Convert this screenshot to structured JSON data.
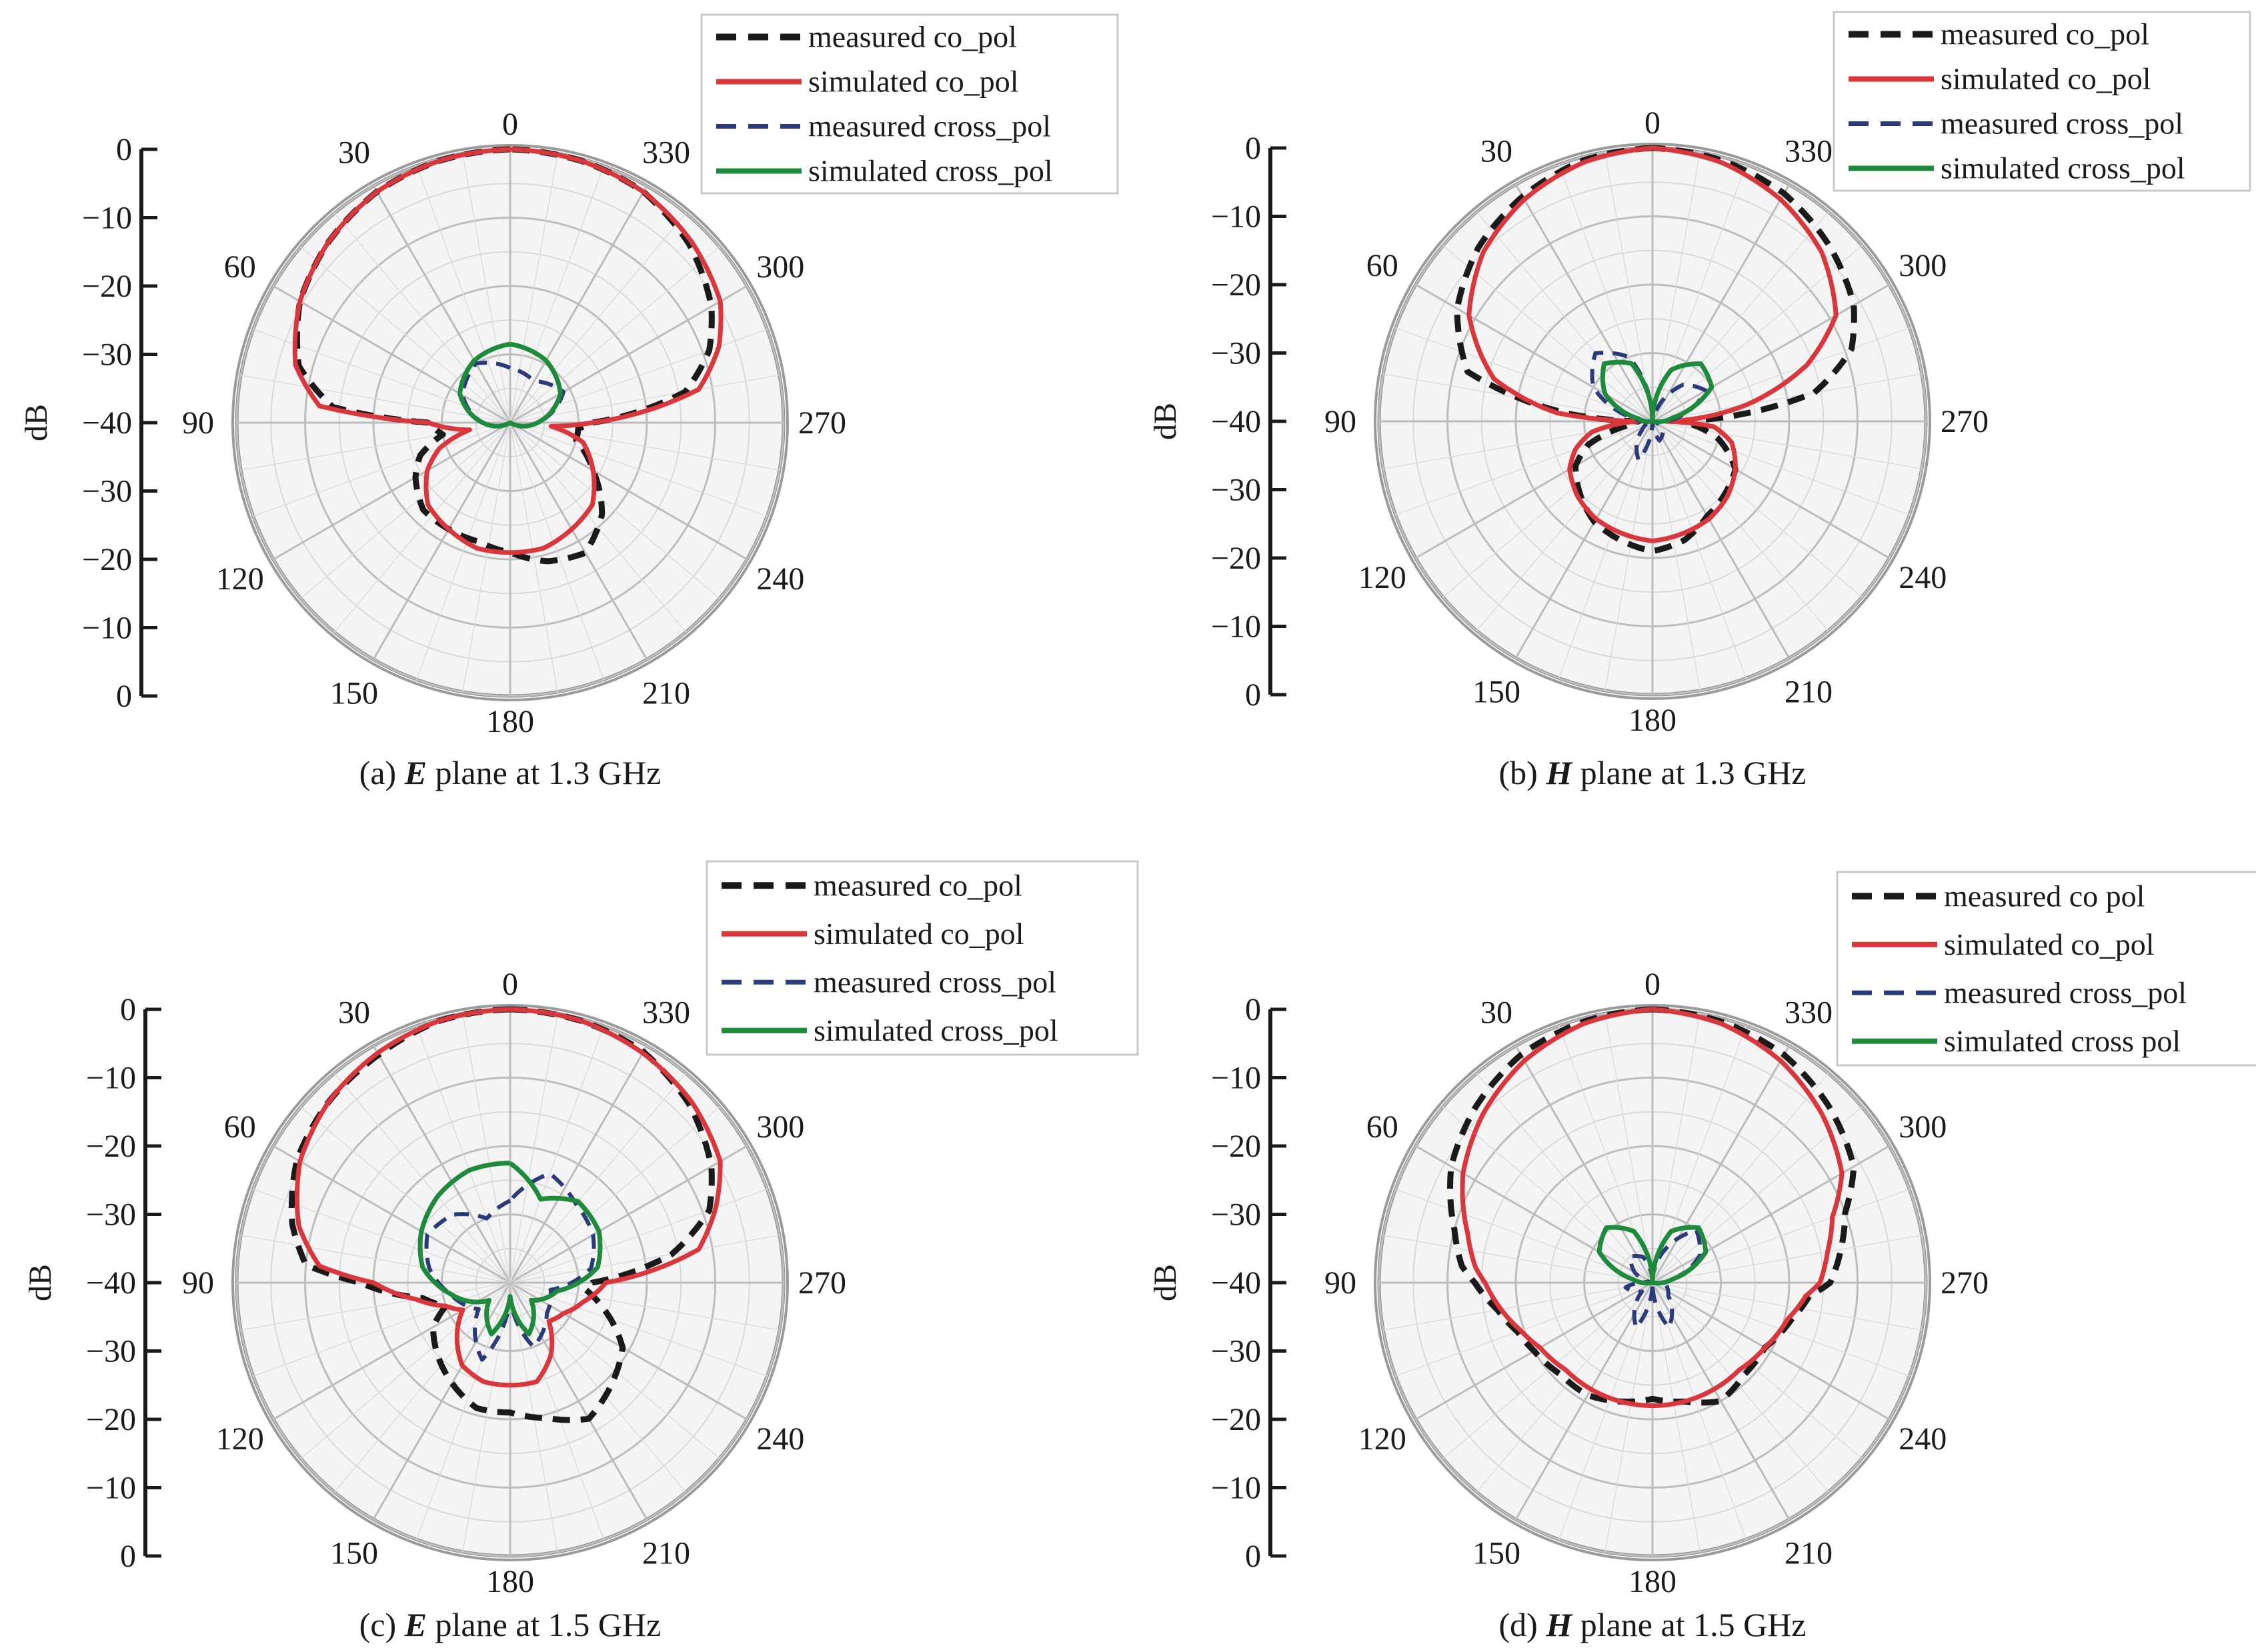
{
  "colors": {
    "measured_co": "#1a1a1a",
    "simulated_co": "#d9373b",
    "measured_cross": "#2b3a78",
    "simulated_cross": "#1e8a3c"
  },
  "chart_data": [
    {
      "type": "polar",
      "caption": {
        "prefix": "(a) ",
        "emph": "E",
        "suffix": " plane at 1.3 GHz"
      },
      "ylabel": "dB",
      "radial_ticks_upper": [
        "0",
        "−10",
        "−20",
        "−30",
        "−40"
      ],
      "radial_ticks_lower": [
        "−30",
        "−20",
        "−10",
        "0"
      ],
      "radial_range_db": [
        -40,
        0
      ],
      "angle_labels": [
        "0",
        "30",
        "60",
        "90",
        "120",
        "150",
        "180",
        "210",
        "240",
        "270",
        "300",
        "330"
      ],
      "angle_direction": "counterclockwise",
      "legend": [
        "measured co_pol",
        "simulated co_pol",
        "measured cross_pol",
        "simulated cross_pol"
      ],
      "legend_position": "top-right",
      "grid": true,
      "series": [
        {
          "name": "measured co_pol",
          "style": "dashed",
          "theta": [
            0,
            15,
            30,
            45,
            60,
            75,
            85,
            90,
            100,
            110,
            120,
            135,
            150,
            165,
            180,
            195,
            210,
            225,
            240,
            255,
            265,
            270,
            280,
            290,
            300,
            315,
            330,
            345,
            360
          ],
          "r": [
            0,
            -0.3,
            -1,
            -2.5,
            -4.5,
            -8,
            -14,
            -28,
            -30,
            -26,
            -24,
            -22,
            -22,
            -22,
            -21,
            -19,
            -18,
            -21,
            -26,
            -30,
            -30,
            -28,
            -14,
            -9,
            -6,
            -3,
            -1,
            -0.3,
            0
          ]
        },
        {
          "name": "simulated co_pol",
          "style": "solid",
          "theta": [
            0,
            15,
            30,
            45,
            60,
            75,
            85,
            90,
            100,
            110,
            120,
            135,
            150,
            165,
            180,
            195,
            210,
            225,
            240,
            255,
            265,
            270,
            280,
            290,
            300,
            315,
            330,
            345,
            360
          ],
          "r": [
            0,
            -0.3,
            -1,
            -2.5,
            -4.5,
            -7.5,
            -12,
            -28,
            -34,
            -29,
            -26,
            -23,
            -22,
            -21,
            -21,
            -21,
            -22,
            -23,
            -26,
            -29,
            -34,
            -28,
            -12,
            -7.5,
            -4.5,
            -2.5,
            -1,
            -0.3,
            0
          ]
        },
        {
          "name": "measured cross_pol",
          "style": "dashed",
          "theta": [
            0,
            30,
            60,
            90,
            120,
            150,
            180,
            210,
            240,
            270,
            300,
            330,
            360
          ],
          "r": [
            -32,
            -30,
            -32,
            -36,
            -40,
            -40,
            -40,
            -40,
            -40,
            -36,
            -31,
            -33,
            -32
          ]
        },
        {
          "name": "simulated cross_pol",
          "style": "solid",
          "theta": [
            0,
            30,
            60,
            90,
            120,
            150,
            180,
            210,
            240,
            270,
            300,
            330,
            360
          ],
          "r": [
            -28.5,
            -29.5,
            -31.5,
            -36,
            -40,
            -40,
            -40,
            -40,
            -40,
            -36,
            -31.5,
            -29.5,
            -28.5
          ]
        }
      ]
    },
    {
      "type": "polar",
      "caption": {
        "prefix": "(b) ",
        "emph": "H",
        "suffix": " plane at 1.3 GHz"
      },
      "ylabel": "dB",
      "radial_ticks_upper": [
        "0",
        "−10",
        "−20",
        "−30",
        "−40"
      ],
      "radial_ticks_lower": [
        "−30",
        "−20",
        "−10",
        "0"
      ],
      "radial_range_db": [
        -40,
        0
      ],
      "angle_labels": [
        "0",
        "30",
        "60",
        "90",
        "120",
        "150",
        "180",
        "210",
        "240",
        "270",
        "300",
        "330"
      ],
      "angle_direction": "counterclockwise",
      "legend": [
        "measured co_pol",
        "simulated co_pol",
        "measured cross_pol",
        "simulated cross_pol"
      ],
      "legend_position": "top-right",
      "grid": true,
      "series": [
        {
          "name": "measured co_pol",
          "style": "dashed",
          "theta": [
            0,
            15,
            30,
            45,
            60,
            75,
            85,
            90,
            100,
            110,
            120,
            135,
            150,
            165,
            180,
            195,
            210,
            225,
            240,
            255,
            265,
            270,
            280,
            290,
            300,
            315,
            330,
            345,
            360
          ],
          "r": [
            0,
            -0.5,
            -2,
            -4,
            -7,
            -12,
            -28,
            -38,
            -36,
            -30,
            -27,
            -25,
            -23,
            -22,
            -21,
            -22,
            -24,
            -25,
            -26,
            -30,
            -34,
            -36,
            -16,
            -9,
            -6,
            -3.5,
            -1.5,
            -0.5,
            0
          ]
        },
        {
          "name": "simulated co_pol",
          "style": "solid",
          "theta": [
            0,
            15,
            30,
            45,
            60,
            75,
            85,
            90,
            100,
            110,
            120,
            135,
            150,
            165,
            180,
            195,
            210,
            225,
            240,
            255,
            265,
            270,
            280,
            290,
            300,
            315,
            330,
            345,
            360
          ],
          "r": [
            0,
            -0.8,
            -2.5,
            -5,
            -9,
            -16,
            -26,
            -38,
            -31,
            -28,
            -26,
            -24.5,
            -23.5,
            -23,
            -22.5,
            -23,
            -23.5,
            -24.5,
            -26,
            -28,
            -31,
            -38,
            -26,
            -16,
            -9,
            -5,
            -2.5,
            -0.8,
            0
          ]
        },
        {
          "name": "measured cross_pol",
          "style": "dashed",
          "theta": [
            0,
            20,
            40,
            60,
            80,
            100,
            130,
            160,
            180,
            200,
            230,
            260,
            280,
            300,
            320,
            340,
            360
          ],
          "r": [
            -40,
            -30,
            -27,
            -30,
            -37,
            -40,
            -38,
            -34,
            -40,
            -37,
            -38,
            -40,
            -36,
            -31,
            -33,
            -38,
            -40
          ]
        },
        {
          "name": "simulated cross_pol",
          "style": "solid",
          "theta": [
            0,
            20,
            40,
            60,
            80,
            100,
            140,
            180,
            220,
            260,
            280,
            300,
            320,
            340,
            360
          ],
          "r": [
            -40,
            -31,
            -29,
            -32,
            -38,
            -40,
            -40,
            -40,
            -40,
            -40,
            -37,
            -30,
            -29,
            -32,
            -40
          ]
        }
      ]
    },
    {
      "type": "polar",
      "caption": {
        "prefix": "(c) ",
        "emph": "E",
        "suffix": " plane at 1.5 GHz"
      },
      "ylabel": "dB",
      "radial_ticks_upper": [
        "0",
        "−10",
        "−20",
        "−30",
        "−40"
      ],
      "radial_ticks_lower": [
        "−30",
        "−20",
        "−10",
        "0"
      ],
      "radial_range_db": [
        -40,
        0
      ],
      "angle_labels": [
        "0",
        "30",
        "60",
        "90",
        "120",
        "150",
        "180",
        "210",
        "240",
        "270",
        "300",
        "330"
      ],
      "angle_direction": "counterclockwise",
      "legend": [
        "measured co_pol",
        "simulated co_pol",
        "measured cross_pol",
        "simulated cross_pol"
      ],
      "legend_position": "top-right",
      "grid": true,
      "series": [
        {
          "name": "measured co_pol",
          "style": "dashed",
          "theta": [
            0,
            15,
            30,
            45,
            60,
            75,
            85,
            90,
            100,
            110,
            120,
            135,
            150,
            165,
            180,
            195,
            210,
            225,
            240,
            255,
            265,
            270,
            280,
            290,
            300,
            315,
            330,
            345,
            360
          ],
          "r": [
            0,
            -0.3,
            -1.5,
            -2.5,
            -4,
            -7,
            -10,
            -18,
            -27,
            -30,
            -27,
            -25,
            -23,
            -21,
            -21,
            -19.5,
            -17,
            -19,
            -21,
            -26,
            -29,
            -28,
            -16,
            -9,
            -6,
            -3,
            -1,
            -0.3,
            0
          ]
        },
        {
          "name": "simulated co_pol",
          "style": "solid",
          "theta": [
            0,
            15,
            30,
            45,
            60,
            75,
            85,
            90,
            100,
            110,
            120,
            135,
            150,
            165,
            180,
            195,
            210,
            225,
            240,
            255,
            265,
            270,
            280,
            290,
            300,
            315,
            330,
            345,
            360
          ],
          "r": [
            0,
            -0.3,
            -1.2,
            -2.5,
            -4.5,
            -8,
            -12,
            -20,
            -26,
            -30,
            -32,
            -29,
            -26,
            -25,
            -25,
            -25,
            -28,
            -32,
            -31,
            -29,
            -27,
            -26,
            -12,
            -8,
            -4.5,
            -2.5,
            -1.2,
            -0.3,
            0
          ]
        },
        {
          "name": "measured cross_pol",
          "style": "dashed",
          "theta": [
            0,
            20,
            40,
            60,
            80,
            100,
            130,
            160,
            180,
            200,
            230,
            260,
            280,
            300,
            320,
            340,
            360
          ],
          "r": [
            -28,
            -30,
            -27,
            -26,
            -28,
            -31,
            -34,
            -28,
            -38,
            -30,
            -33,
            -34,
            -28,
            -26,
            -25,
            -23,
            -28
          ]
        },
        {
          "name": "simulated cross_pol",
          "style": "solid",
          "theta": [
            0,
            20,
            40,
            60,
            80,
            100,
            130,
            160,
            180,
            200,
            230,
            260,
            280,
            300,
            320,
            340,
            360
          ],
          "r": [
            -22.5,
            -22.5,
            -23.5,
            -25,
            -27,
            -31,
            -36,
            -32,
            -38,
            -32,
            -36,
            -33,
            -27,
            -25,
            -24.5,
            -27,
            -22.5
          ]
        }
      ]
    },
    {
      "type": "polar",
      "caption": {
        "prefix": "(d) ",
        "emph": "H",
        "suffix": " plane at 1.5 GHz"
      },
      "ylabel": "dB",
      "radial_ticks_upper": [
        "0",
        "−10",
        "−20",
        "−30",
        "−40"
      ],
      "radial_ticks_lower": [
        "−30",
        "−20",
        "−10",
        "0"
      ],
      "radial_range_db": [
        -40,
        0
      ],
      "angle_labels": [
        "0",
        "30",
        "60",
        "90",
        "120",
        "150",
        "180",
        "210",
        "240",
        "270",
        "300",
        "330"
      ],
      "angle_direction": "counterclockwise",
      "legend": [
        "measured co pol",
        "simulated co_pol",
        "measured cross_pol",
        "simulated cross pol"
      ],
      "legend_position": "top-right",
      "grid": true,
      "series": [
        {
          "name": "measured co pol",
          "style": "dashed",
          "theta": [
            0,
            15,
            30,
            45,
            60,
            75,
            85,
            90,
            100,
            110,
            120,
            135,
            150,
            165,
            180,
            195,
            210,
            225,
            240,
            255,
            265,
            270,
            280,
            290,
            300,
            315,
            330,
            345,
            360
          ],
          "r": [
            0,
            -0.5,
            -1.5,
            -3.5,
            -6,
            -10,
            -12,
            -14,
            -17,
            -19,
            -20,
            -21,
            -21,
            -22,
            -23,
            -22,
            -20,
            -21,
            -21,
            -19,
            -17,
            -14,
            -12,
            -10,
            -6,
            -3.5,
            -1.5,
            -0.5,
            0
          ]
        },
        {
          "name": "simulated co_pol",
          "style": "solid",
          "theta": [
            0,
            15,
            30,
            45,
            60,
            75,
            85,
            90,
            100,
            110,
            120,
            135,
            150,
            165,
            180,
            195,
            210,
            225,
            240,
            255,
            265,
            270,
            280,
            290,
            300,
            315,
            330,
            345,
            360
          ],
          "r": [
            0,
            -0.8,
            -2.5,
            -5,
            -8,
            -12,
            -14,
            -15.5,
            -17.5,
            -19.5,
            -21,
            -22,
            -22,
            -22,
            -22,
            -22,
            -22,
            -22,
            -21,
            -19.5,
            -17.5,
            -15.5,
            -14,
            -12,
            -8,
            -5,
            -2.5,
            -0.8,
            0
          ]
        },
        {
          "name": "measured cross_pol",
          "style": "dashed",
          "theta": [
            0,
            20,
            40,
            60,
            80,
            100,
            130,
            160,
            180,
            200,
            230,
            260,
            280,
            300,
            320,
            340,
            360
          ],
          "r": [
            -40,
            -36,
            -35,
            -37,
            -40,
            -36,
            -38,
            -33,
            -40,
            -33,
            -37,
            -38,
            -37,
            -32,
            -30,
            -35,
            -40
          ]
        },
        {
          "name": "simulated cross pol",
          "style": "solid",
          "theta": [
            0,
            20,
            40,
            60,
            80,
            100,
            140,
            180,
            220,
            260,
            280,
            300,
            320,
            340,
            360
          ],
          "r": [
            -40,
            -32,
            -29.5,
            -31,
            -37,
            -40,
            -40,
            -40,
            -40,
            -40,
            -37,
            -31,
            -29.5,
            -32,
            -40
          ]
        }
      ]
    }
  ]
}
